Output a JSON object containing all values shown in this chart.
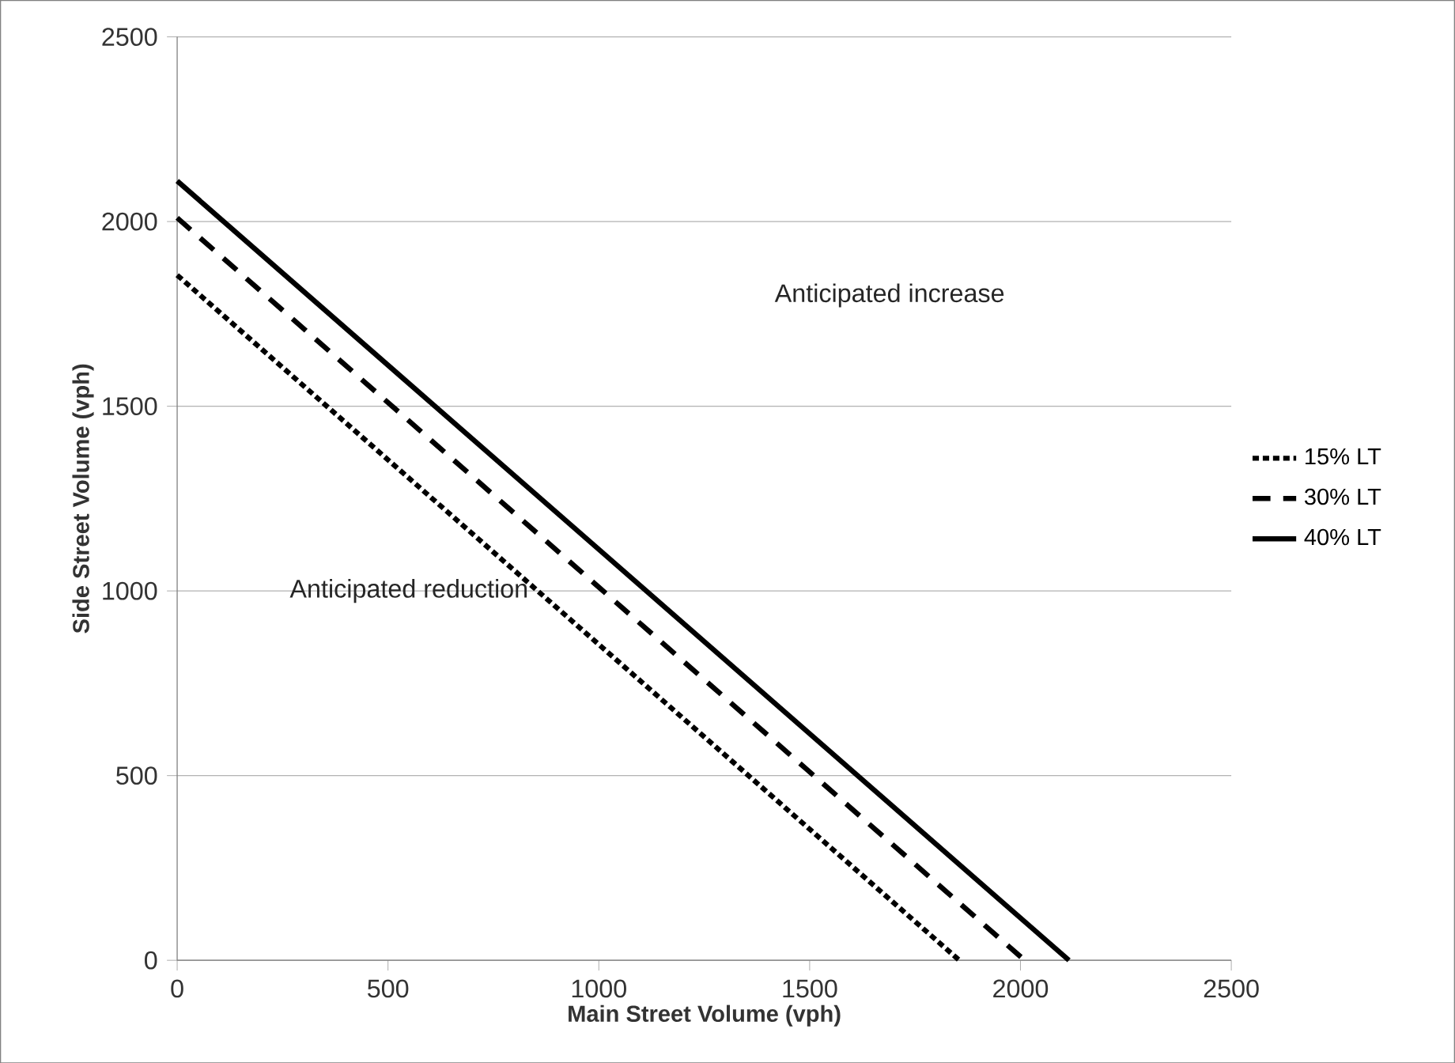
{
  "chart_data": {
    "type": "line",
    "xlabel": "Main Street Volume (vph)",
    "ylabel": "Side Street Volume (vph)",
    "xlim": [
      0,
      2500
    ],
    "ylim": [
      0,
      2500
    ],
    "xticks": [
      0,
      500,
      1000,
      1500,
      2000,
      2500
    ],
    "yticks": [
      0,
      500,
      1000,
      1500,
      2000,
      2500
    ],
    "grid": "y",
    "legend": "right",
    "marker": "none",
    "series": [
      {
        "name": "15% LT",
        "color": "#000000",
        "line_style": "dotted",
        "x": [
          0,
          1855
        ],
        "values": [
          1855,
          0
        ]
      },
      {
        "name": "30% LT",
        "color": "#000000",
        "line_style": "dashed",
        "x": [
          0,
          2010
        ],
        "values": [
          2010,
          0
        ]
      },
      {
        "name": "40% LT",
        "color": "#000000",
        "line_style": "solid",
        "x": [
          0,
          2115
        ],
        "values": [
          2110,
          0
        ]
      }
    ],
    "annotations": [
      "Anticipated increase",
      "Anticipated reduction"
    ]
  }
}
